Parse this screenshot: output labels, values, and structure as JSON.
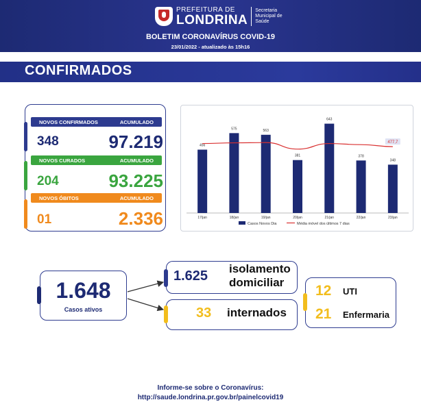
{
  "header": {
    "logo_top": "PREFEITURA DE",
    "logo_main": "LONDRINA",
    "logo_side": "Secretaria Municipal de Saúde",
    "bulletin_title": "BOLETIM CORONAVÍRUS COVID-19",
    "bulletin_date": "23/01/2022 - atualizado às 15h16"
  },
  "section": {
    "title": "CONFIRMADOS"
  },
  "stats": {
    "confirmed": {
      "label": "NOVOS CONFIRMADOS",
      "acc_label": "ACUMULADO",
      "new": "348",
      "total": "97.219",
      "color": "#2d3b8f"
    },
    "recovered": {
      "label": "NOVOS CURADOS",
      "acc_label": "ACUMULADO",
      "new": "204",
      "total": "93.225",
      "color": "#3aa53f"
    },
    "deaths": {
      "label": "NOVOS ÓBITOS",
      "acc_label": "ACUMULADO",
      "new": "01",
      "total": "2.336",
      "color": "#f08a1d"
    }
  },
  "chart_data": {
    "type": "bar",
    "categories": [
      "17/jan",
      "18/jan",
      "19/jan",
      "20/jan",
      "21/jan",
      "22/jan",
      "23/jan"
    ],
    "series": [
      {
        "name": "Casos Novos Dia",
        "type": "bar",
        "color": "#1d2a73",
        "values": [
          456,
          575,
          563,
          381,
          643,
          378,
          348
        ]
      },
      {
        "name": "Média móvel dos últimos 7 dias",
        "type": "line",
        "color": "#d93030",
        "values": [
          500,
          505,
          507,
          460,
          500,
          492,
          477.7
        ]
      }
    ],
    "bar_labels": [
      "456",
      "575",
      "563",
      "381",
      "643",
      "378",
      "348"
    ],
    "line_end_label": "477,7",
    "ylim": [
      0,
      700
    ],
    "grid": false,
    "legend_position": "bottom"
  },
  "flow": {
    "active": {
      "value": "1.648",
      "label": "Casos ativos"
    },
    "isolation": {
      "value": "1.625",
      "label_line1": "isolamento",
      "label_line2": "domiciliar"
    },
    "hospitalized": {
      "value": "33",
      "label": "internados"
    },
    "uti": {
      "value": "12",
      "label": "UTI"
    },
    "ward": {
      "value": "21",
      "label": "Enfermaria"
    }
  },
  "footer": {
    "line1": "Informe-se sobre o Coronavírus:",
    "line2": "http://saude.londrina.pr.gov.br/painelcovid19"
  }
}
